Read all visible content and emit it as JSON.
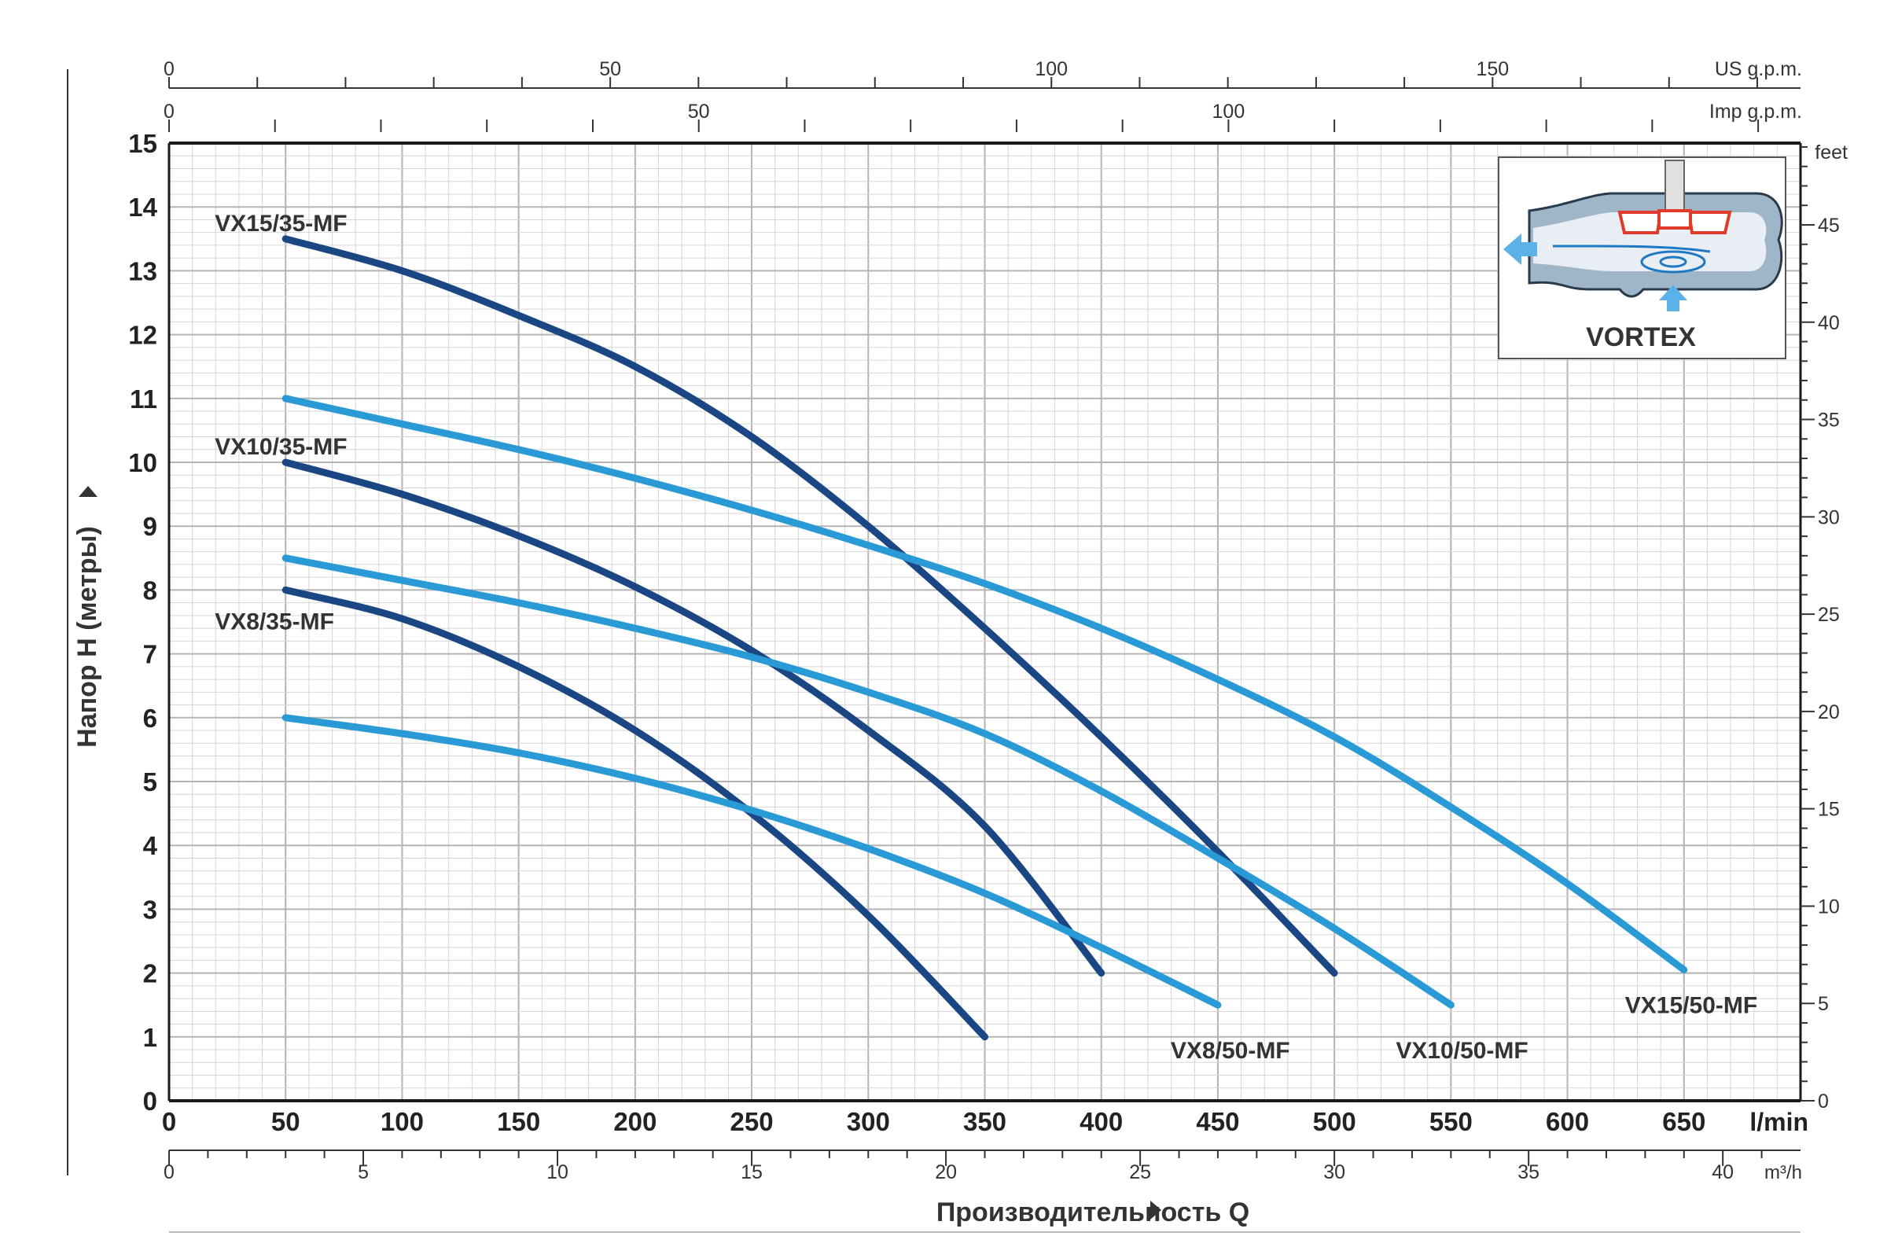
{
  "chart_data": {
    "type": "line",
    "title": "",
    "xlabel": "Производительность Q",
    "ylabel": "Напор H (метры)",
    "xlim": [
      0,
      700
    ],
    "ylim": [
      0,
      15
    ],
    "grid": true,
    "axes": {
      "x_primary": {
        "unit": "l/min",
        "ticks": [
          0,
          50,
          100,
          150,
          200,
          250,
          300,
          350,
          400,
          450,
          500,
          550,
          600,
          650
        ]
      },
      "x_m3h": {
        "unit": "m³/h",
        "range": [
          0,
          42
        ],
        "ticks": [
          0,
          5,
          10,
          15,
          20,
          25,
          30,
          35,
          40
        ]
      },
      "x_us_gpm": {
        "unit": "US g.p.m.",
        "range": [
          0,
          184.9
        ],
        "ticks": [
          0,
          50,
          100,
          150
        ]
      },
      "x_imp_gpm": {
        "unit": "Imp g.p.m.",
        "range": [
          0,
          154
        ],
        "ticks": [
          0,
          50,
          100
        ]
      },
      "y_primary": {
        "unit": "m",
        "ticks": [
          0,
          1,
          2,
          3,
          4,
          5,
          6,
          7,
          8,
          9,
          10,
          11,
          12,
          13,
          14,
          15
        ]
      },
      "y_feet": {
        "unit": "feet",
        "range": [
          0,
          49.2
        ],
        "ticks": [
          0,
          5,
          10,
          15,
          20,
          25,
          30,
          35,
          40,
          45
        ]
      }
    },
    "series": [
      {
        "name": "VX15/35-MF",
        "color": "#1b4684",
        "x": [
          50,
          100,
          150,
          200,
          250,
          300,
          350,
          400,
          450,
          500
        ],
        "y": [
          13.5,
          13.0,
          12.3,
          11.5,
          10.4,
          9.0,
          7.4,
          5.7,
          3.9,
          2.0
        ]
      },
      {
        "name": "VX10/35-MF",
        "color": "#1b4684",
        "x": [
          50,
          100,
          150,
          200,
          250,
          300,
          350,
          400
        ],
        "y": [
          10.0,
          9.5,
          8.85,
          8.05,
          7.05,
          5.8,
          4.3,
          2.0
        ]
      },
      {
        "name": "VX8/35-MF",
        "color": "#1b4684",
        "x": [
          50,
          100,
          150,
          200,
          250,
          300,
          350
        ],
        "y": [
          8.0,
          7.55,
          6.8,
          5.8,
          4.5,
          2.9,
          1.0
        ]
      },
      {
        "name": "VX15/50-MF",
        "color": "#2a9ad6",
        "x": [
          50,
          100,
          150,
          200,
          250,
          300,
          350,
          400,
          450,
          500,
          550,
          600,
          650
        ],
        "y": [
          11.0,
          10.6,
          10.2,
          9.75,
          9.25,
          8.7,
          8.1,
          7.4,
          6.6,
          5.7,
          4.6,
          3.4,
          2.05
        ]
      },
      {
        "name": "VX10/50-MF",
        "color": "#2a9ad6",
        "x": [
          50,
          100,
          150,
          200,
          250,
          300,
          350,
          400,
          450,
          500,
          550
        ],
        "y": [
          8.5,
          8.15,
          7.8,
          7.4,
          6.95,
          6.4,
          5.75,
          4.85,
          3.8,
          2.7,
          1.5
        ]
      },
      {
        "name": "VX8/50-MF",
        "color": "#2a9ad6",
        "x": [
          50,
          100,
          150,
          200,
          250,
          300,
          350,
          400,
          450
        ],
        "y": [
          6.0,
          5.75,
          5.45,
          5.05,
          4.55,
          3.95,
          3.25,
          2.4,
          1.5
        ]
      }
    ]
  },
  "inset": {
    "label": "VORTEX"
  }
}
